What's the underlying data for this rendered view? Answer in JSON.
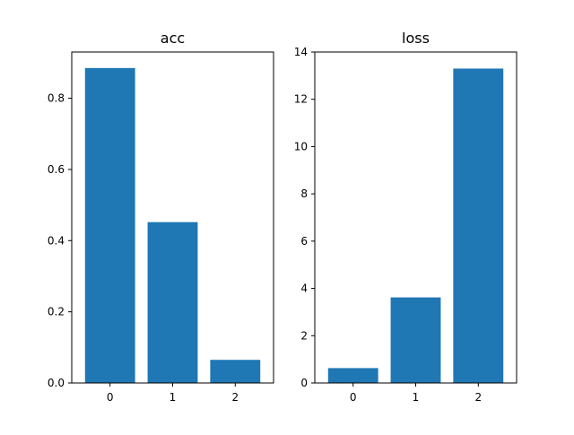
{
  "chart_data": [
    {
      "type": "bar",
      "title": "acc",
      "xlabel": "",
      "ylabel": "",
      "categories": [
        "0",
        "1",
        "2"
      ],
      "values": [
        0.885,
        0.452,
        0.065
      ],
      "ylim": [
        0,
        0.93
      ],
      "yticks": [
        0.0,
        0.2,
        0.4,
        0.6,
        0.8
      ],
      "ytick_labels": [
        "0.0",
        "0.2",
        "0.4",
        "0.6",
        "0.8"
      ],
      "bar_color": "#1f77b4",
      "grid": false
    },
    {
      "type": "bar",
      "title": "loss",
      "xlabel": "",
      "ylabel": "",
      "categories": [
        "0",
        "1",
        "2"
      ],
      "values": [
        0.63,
        3.62,
        13.3
      ],
      "ylim": [
        0,
        14
      ],
      "yticks": [
        0,
        2,
        4,
        6,
        8,
        10,
        12,
        14
      ],
      "ytick_labels": [
        "0",
        "2",
        "4",
        "6",
        "8",
        "10",
        "12",
        "14"
      ],
      "bar_color": "#1f77b4",
      "grid": false
    }
  ]
}
